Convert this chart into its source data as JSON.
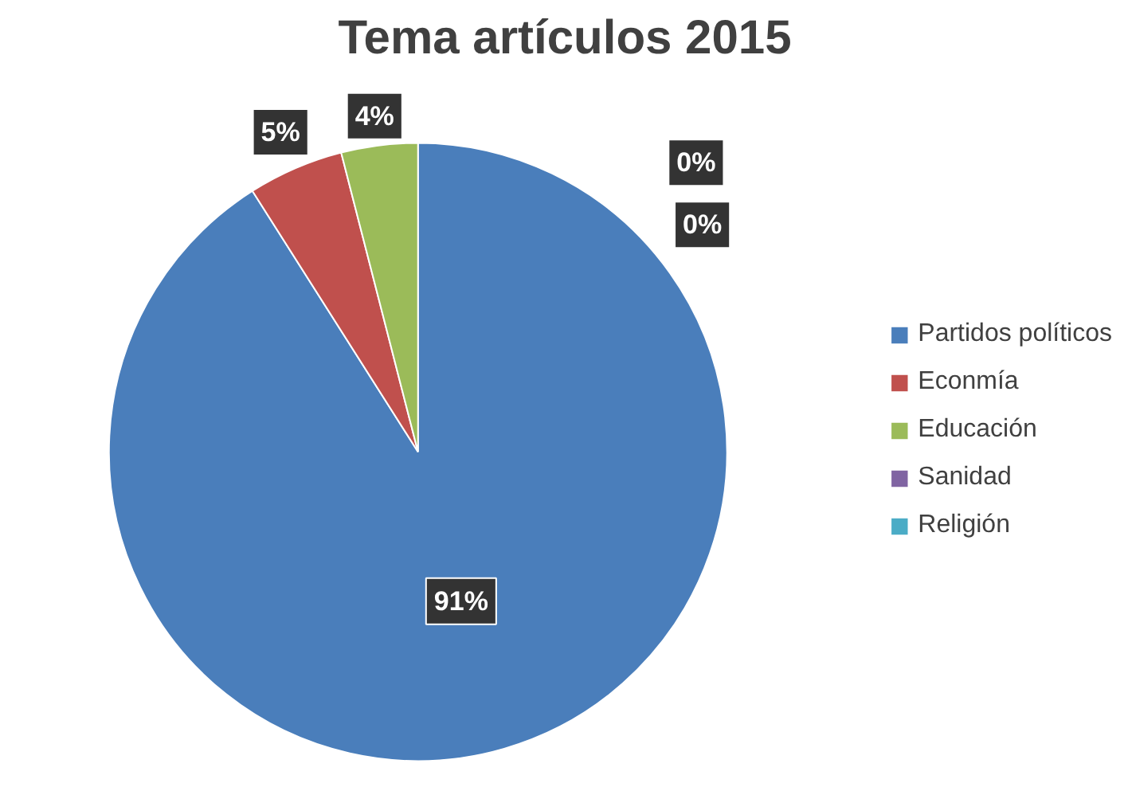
{
  "chart_data": {
    "type": "pie",
    "title": "Tema artículos 2015",
    "categories": [
      "Partidos políticos",
      "Econmía",
      "Educación",
      "Sanidad",
      "Religión"
    ],
    "values": [
      91,
      5,
      4,
      0,
      0
    ],
    "colors": [
      "#4a7ebb",
      "#c0504d",
      "#9bbb59",
      "#8064a2",
      "#4bacc6"
    ],
    "value_labels": [
      "91%",
      "5%",
      "4%",
      "0%",
      "0%"
    ],
    "legend": "right"
  }
}
